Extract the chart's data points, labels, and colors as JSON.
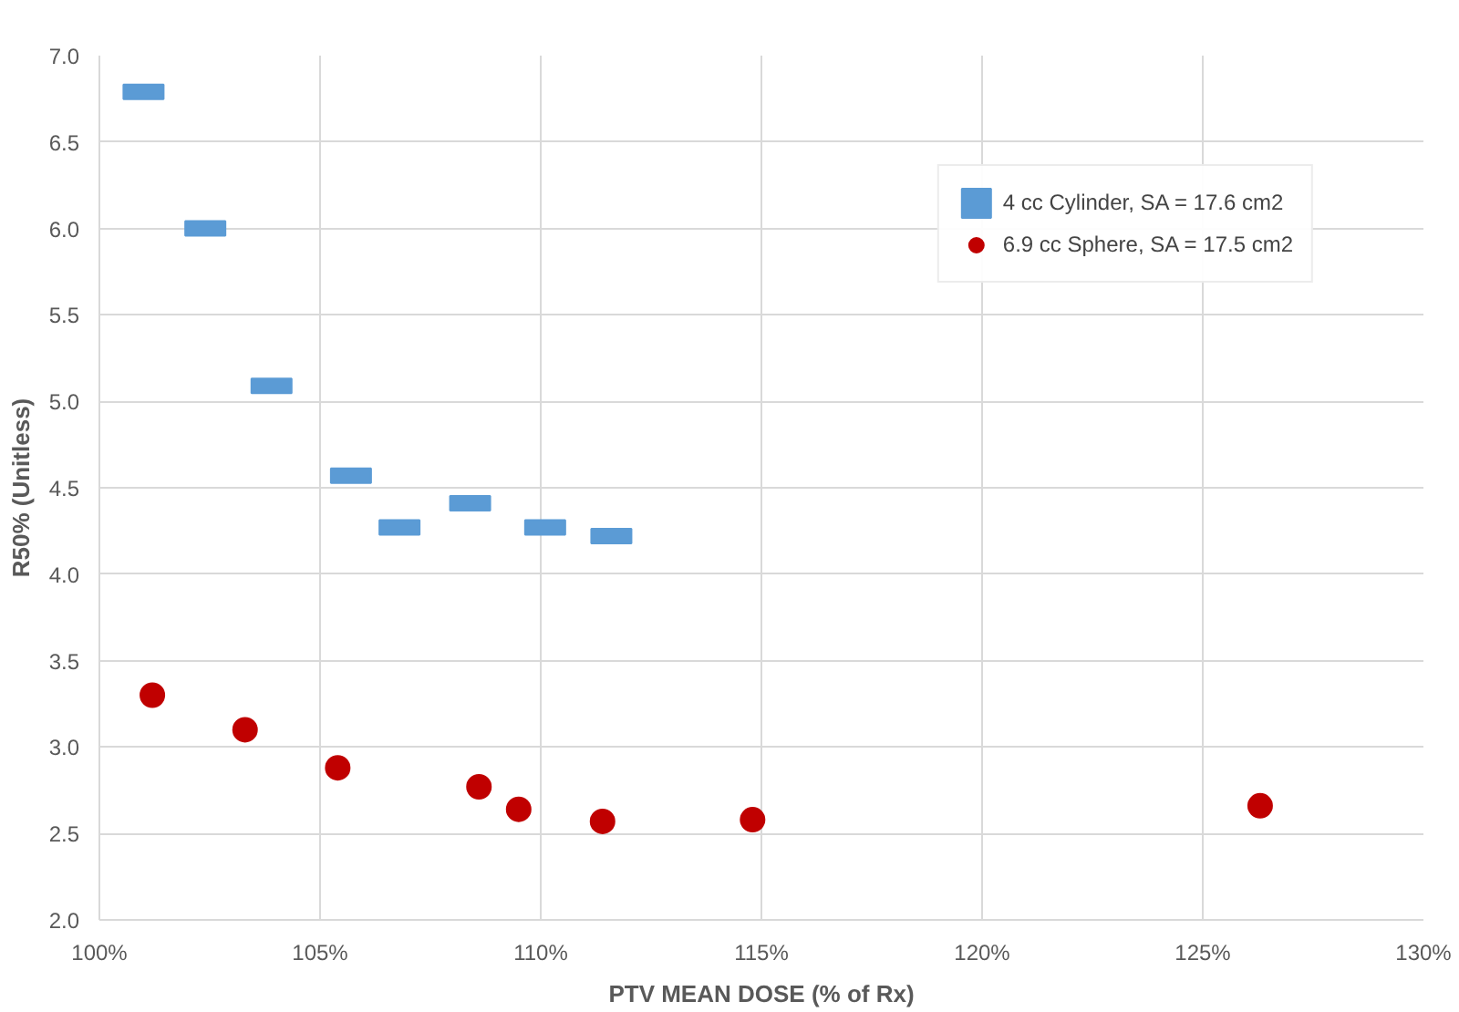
{
  "chart_data": {
    "type": "scatter",
    "xlabel": "PTV MEAN DOSE (% of Rx)",
    "ylabel": "R50% (Unitless)",
    "xlim": [
      100,
      130
    ],
    "ylim": [
      2.0,
      7.0
    ],
    "xticks": [
      {
        "value": 100,
        "label": "100%"
      },
      {
        "value": 105,
        "label": "105%"
      },
      {
        "value": 110,
        "label": "110%"
      },
      {
        "value": 115,
        "label": "115%"
      },
      {
        "value": 120,
        "label": "120%"
      },
      {
        "value": 125,
        "label": "125%"
      },
      {
        "value": 130,
        "label": "130%"
      }
    ],
    "yticks": [
      {
        "value": 2.0,
        "label": "2.0"
      },
      {
        "value": 2.5,
        "label": "2.5"
      },
      {
        "value": 3.0,
        "label": "3.0"
      },
      {
        "value": 3.5,
        "label": "3.5"
      },
      {
        "value": 4.0,
        "label": "4.0"
      },
      {
        "value": 4.5,
        "label": "4.5"
      },
      {
        "value": 5.0,
        "label": "5.0"
      },
      {
        "value": 5.5,
        "label": "5.5"
      },
      {
        "value": 6.0,
        "label": "6.0"
      },
      {
        "value": 6.5,
        "label": "6.5"
      },
      {
        "value": 7.0,
        "label": "7.0"
      }
    ],
    "grid": true,
    "legend": "top right",
    "series": [
      {
        "name": "4 cc Cylinder, SA = 17.6 cm2",
        "color": "#5b9bd5",
        "marker": "square",
        "x": [
          101.0,
          102.4,
          103.9,
          105.7,
          106.8,
          108.4,
          110.1,
          111.6
        ],
        "values": [
          6.79,
          6.0,
          5.09,
          4.57,
          4.27,
          4.41,
          4.27,
          4.22
        ]
      },
      {
        "name": "6.9 cc Sphere, SA = 17.5 cm2",
        "color": "#c00000",
        "marker": "circle",
        "x": [
          101.2,
          103.3,
          105.4,
          108.6,
          109.5,
          111.4,
          114.8,
          126.3
        ],
        "values": [
          3.3,
          3.1,
          2.88,
          2.77,
          2.64,
          2.57,
          2.58,
          2.66
        ]
      }
    ]
  }
}
